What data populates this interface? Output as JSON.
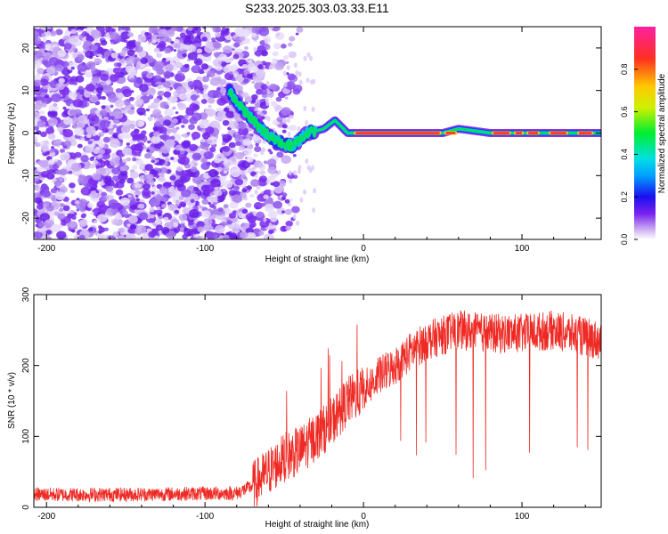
{
  "title": "S233.2025.303.03.33.E11",
  "colors": {
    "signal": "#e8302a",
    "noise": "#7a3cf0",
    "trace": "#ff2020"
  },
  "chart_data": [
    {
      "type": "heatmap",
      "name": "spectrogram",
      "xlabel": "Height of straight line (km)",
      "ylabel": "Frequency (Hz)",
      "xlim": [
        -208,
        150
      ],
      "ylim": [
        -25,
        25
      ],
      "xticks": [
        -200,
        -100,
        0,
        100
      ],
      "yticks": [
        -20,
        -10,
        0,
        10,
        20
      ],
      "colorbar": {
        "label": "Normalized spectral amplitude",
        "range": [
          0.0,
          1.0
        ],
        "ticks": [
          0.0,
          0.2,
          0.4,
          0.6,
          0.8
        ]
      },
      "ridge": {
        "description_points_x": [
          -85,
          -75,
          -65,
          -55,
          -45,
          -35,
          -25,
          -18,
          -10,
          0,
          20,
          50,
          60,
          80,
          100,
          150
        ],
        "description_points_y": [
          10,
          5,
          1,
          -2,
          -3,
          0,
          1,
          3,
          0,
          0,
          0,
          0,
          1,
          0,
          0,
          0
        ]
      }
    },
    {
      "type": "line",
      "name": "snr",
      "xlabel": "Height of straight line (km)",
      "ylabel": "SNR (10 * v/v)",
      "xlim": [
        -208,
        150
      ],
      "ylim": [
        0,
        300
      ],
      "xticks": [
        -200,
        -100,
        0,
        100
      ],
      "yticks": [
        0,
        100,
        200,
        300
      ],
      "series": [
        {
          "name": "SNR",
          "x": [
            -208,
            -150,
            -80,
            -70,
            -60,
            -50,
            -40,
            -30,
            -20,
            -10,
            0,
            10,
            20,
            30,
            40,
            60,
            80,
            100,
            120,
            150
          ],
          "y": [
            18,
            18,
            20,
            30,
            50,
            70,
            80,
            100,
            120,
            150,
            165,
            185,
            200,
            220,
            235,
            250,
            245,
            245,
            250,
            235
          ]
        }
      ]
    }
  ]
}
